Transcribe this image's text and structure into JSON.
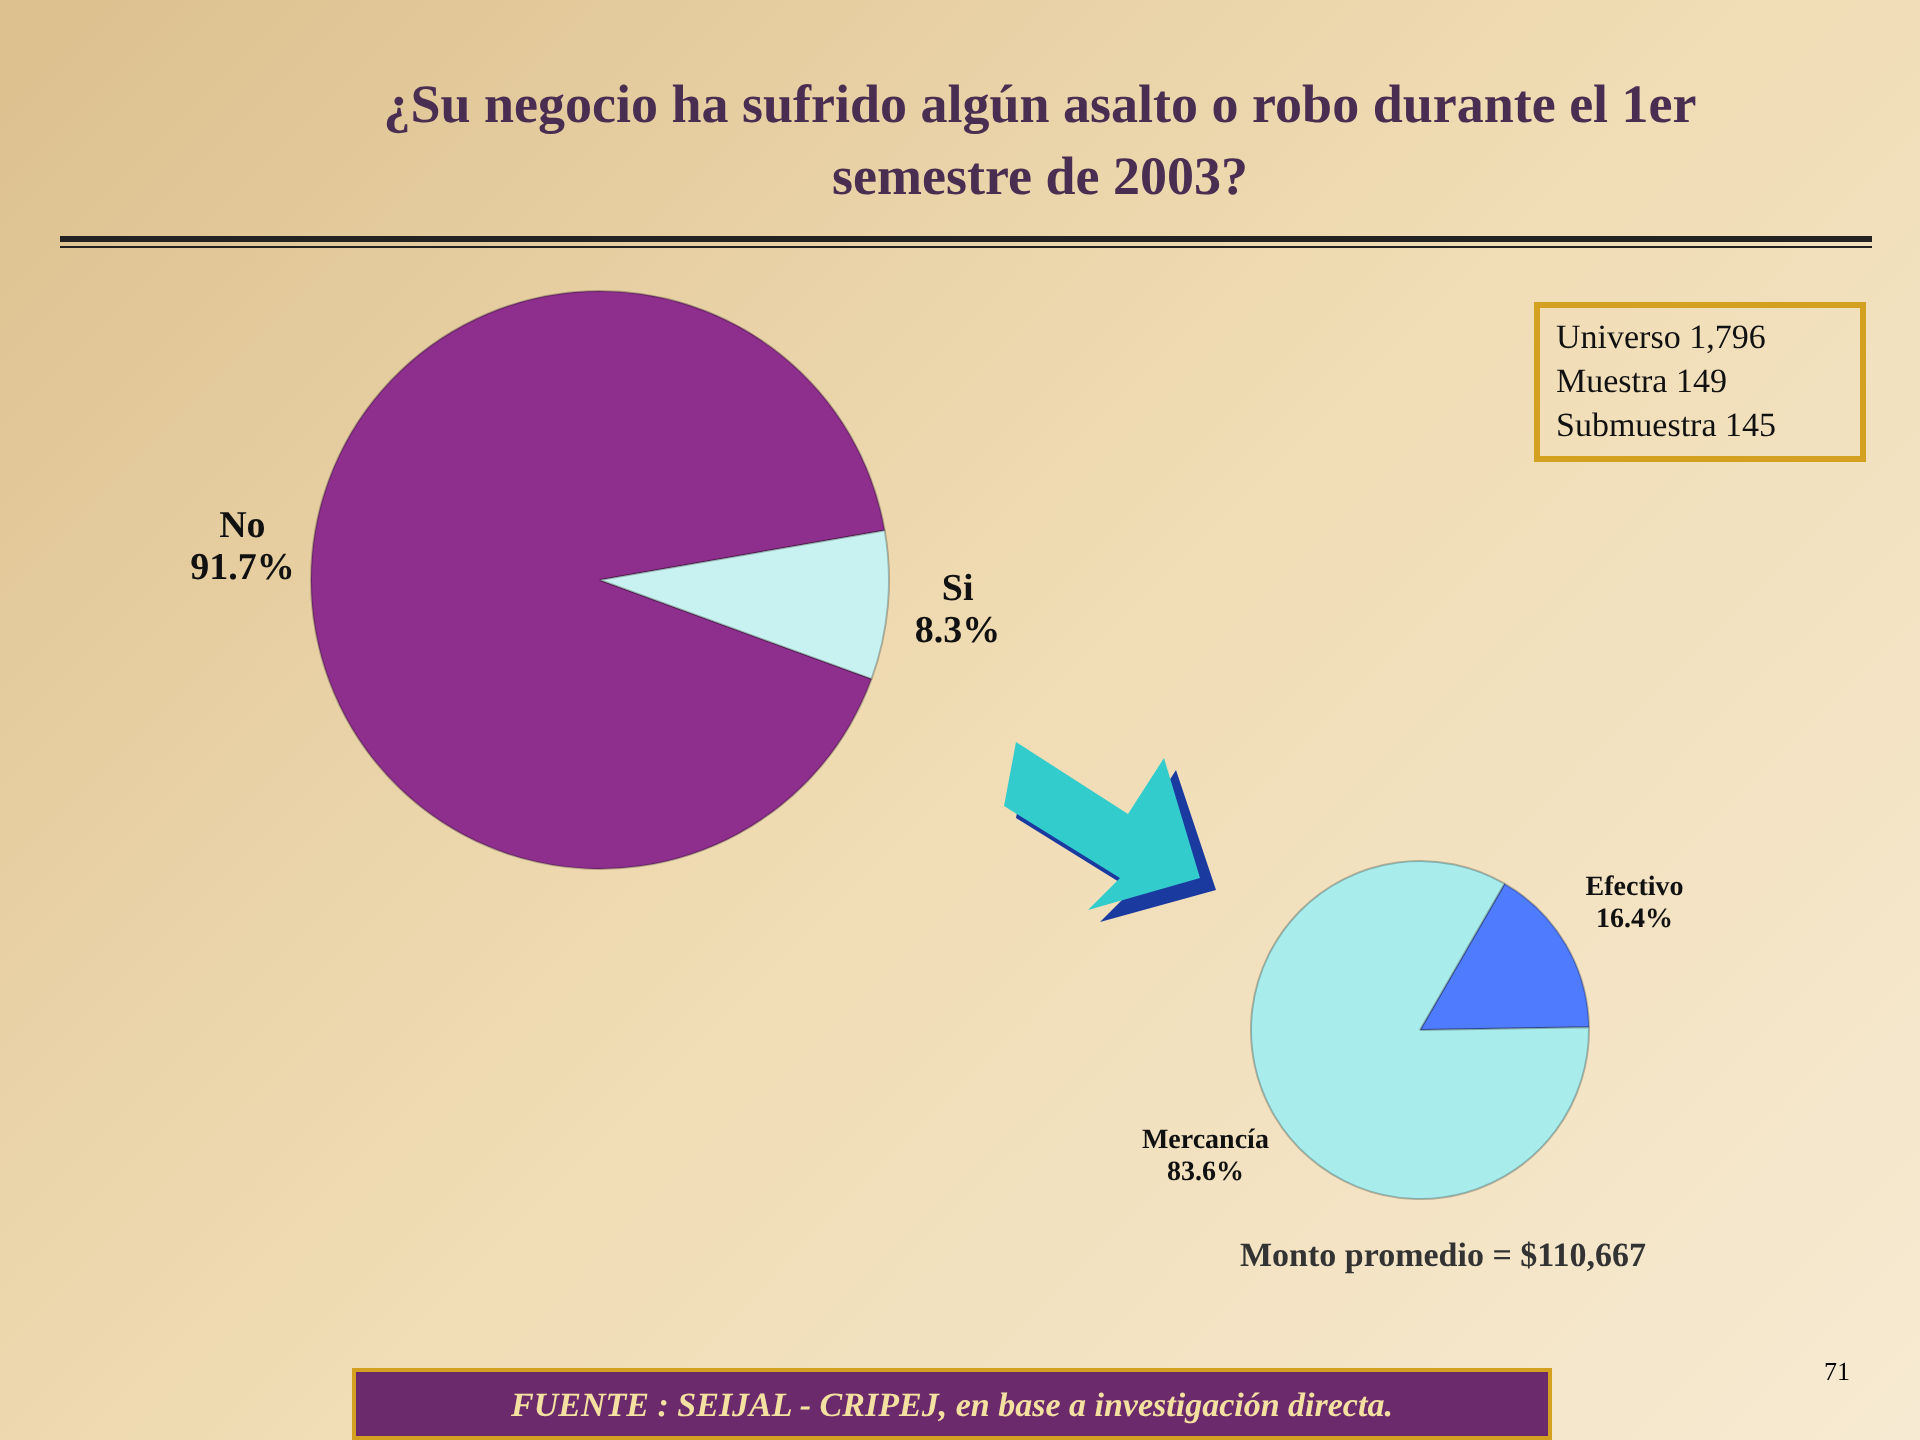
{
  "chart_data": [
    {
      "type": "pie",
      "title": "¿Su negocio ha sufrido algún asalto o robo durante el 1er semestre de 2003?",
      "categories": [
        "No",
        "Si"
      ],
      "values": [
        91.7,
        8.3
      ],
      "colors": [
        "#8e2f8e",
        "#c8f2f2"
      ],
      "value_labels": [
        "91.7%",
        "8.3%"
      ],
      "legend": false,
      "annotations": [
        "Universo  1,796",
        "Muestra  149",
        "Submuestra  145",
        "FUENTE :  SEIJAL - CRIPEJ,  en base a investigación directa.",
        "71"
      ]
    },
    {
      "type": "pie",
      "categories": [
        "Efectivo",
        "Mercancía"
      ],
      "values": [
        16.4,
        83.6
      ],
      "colors": [
        "#4f7cff",
        "#a8ecec"
      ],
      "value_labels": [
        "16.4%",
        "83.6%"
      ],
      "legend": false,
      "annotations": [
        "Monto promedio = $110,667"
      ]
    }
  ]
}
